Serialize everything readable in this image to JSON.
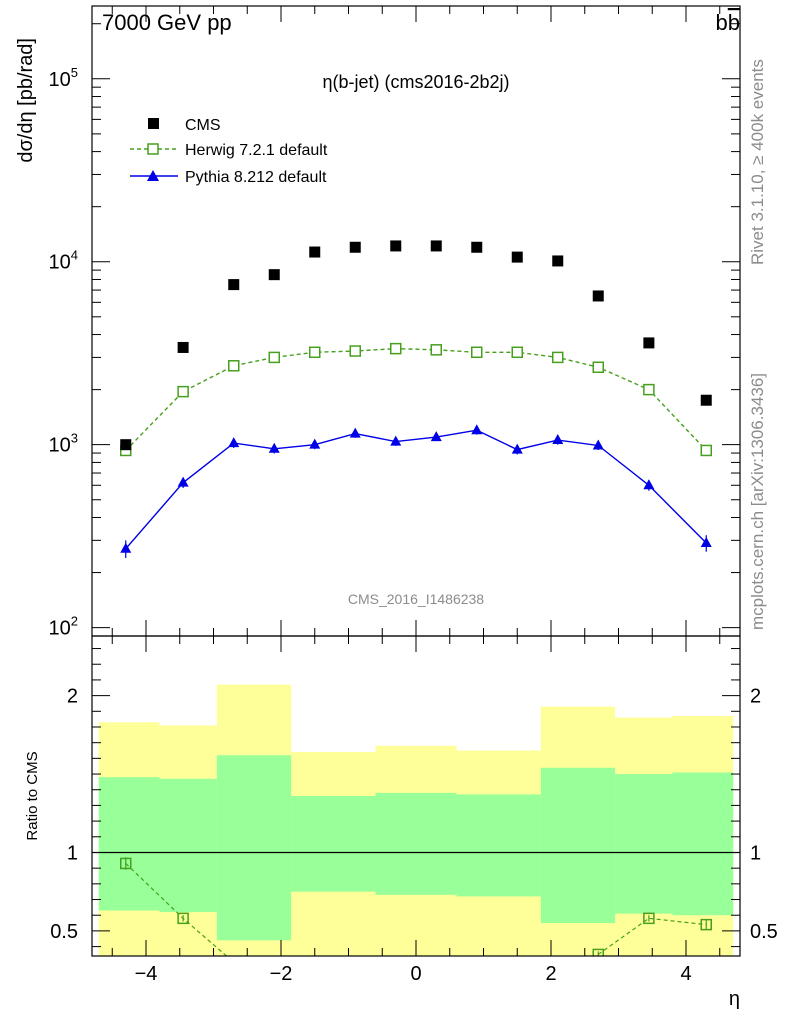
{
  "header": {
    "left": "7000 GeV pp",
    "right": "b",
    "right_bar": "b"
  },
  "side_labels": {
    "rivet": "Rivet 3.1.10, ≥ 400k events",
    "mcplots": "mcplots.cern.ch [arXiv:1306.3436]"
  },
  "watermark": "CMS_2016_I1486238",
  "chart_data": [
    {
      "type": "scatter",
      "panel": "main",
      "title": "η(b-jet) (cms2016-2b2j)",
      "ylabel": "dσ/dη [pb/rad]",
      "xlabel": "",
      "yscale": "log",
      "ylim": [
        90,
        250000
      ],
      "xlim": [
        -4.8,
        4.8
      ],
      "y_ticks": [
        100,
        1000,
        10000,
        100000
      ],
      "y_tick_labels": [
        [
          "10",
          "2"
        ],
        [
          "10",
          "3"
        ],
        [
          "10",
          "4"
        ],
        [
          "10",
          "5"
        ]
      ],
      "legend_position": "top-left",
      "x": [
        -4.3,
        -3.45,
        -2.7,
        -2.1,
        -1.5,
        -0.9,
        -0.3,
        0.3,
        0.9,
        1.5,
        2.1,
        2.7,
        3.45,
        4.3
      ],
      "series": [
        {
          "name": "CMS",
          "color": "#000000",
          "marker": "square",
          "values": [
            1000,
            3400,
            7500,
            8500,
            11300,
            12000,
            12200,
            12200,
            12000,
            10600,
            10100,
            6500,
            3600,
            1750
          ]
        },
        {
          "name": "Herwig 7.2.1 default",
          "color": "#46a01e",
          "marker": "open-square",
          "line": "dashed",
          "values": [
            930,
            1950,
            2700,
            3000,
            3200,
            3250,
            3350,
            3300,
            3200,
            3200,
            3000,
            2650,
            2000,
            930
          ]
        },
        {
          "name": "Pythia 8.212 default",
          "color": "#0000e6",
          "marker": "triangle",
          "line": "solid",
          "values": [
            270,
            620,
            1020,
            950,
            1000,
            1150,
            1040,
            1100,
            1200,
            940,
            1060,
            990,
            600,
            290
          ],
          "errors": [
            30,
            40,
            60,
            55,
            55,
            60,
            55,
            55,
            65,
            55,
            60,
            55,
            40,
            30
          ]
        }
      ]
    },
    {
      "type": "scatter",
      "panel": "ratio",
      "ylabel": "Ratio to CMS",
      "xlabel": "η",
      "ylim": [
        0.34,
        2.38
      ],
      "xlim": [
        -4.8,
        4.8
      ],
      "x_ticks": [
        -4,
        -2,
        0,
        2,
        4
      ],
      "x_tick_labels": [
        "−4",
        "−2",
        "0",
        "2",
        "4"
      ],
      "y_ticks": [
        0.5,
        1,
        2
      ],
      "y_tick_labels": [
        "0.5",
        "1",
        "2"
      ],
      "bands": {
        "edges": [
          -4.7,
          -3.8,
          -2.95,
          -1.85,
          -0.6,
          0.6,
          1.85,
          2.95,
          3.8,
          4.7
        ],
        "green": [
          [
            0.63,
            1.48
          ],
          [
            0.62,
            1.47
          ],
          [
            0.44,
            1.62
          ],
          [
            0.75,
            1.36
          ],
          [
            0.73,
            1.38
          ],
          [
            0.72,
            1.37
          ],
          [
            0.55,
            1.54
          ],
          [
            0.61,
            1.5
          ],
          [
            0.6,
            1.51
          ]
        ],
        "yellow": [
          [
            0.34,
            1.83
          ],
          [
            0.34,
            1.81
          ],
          [
            0.34,
            2.07
          ],
          [
            0.34,
            1.64
          ],
          [
            0.34,
            1.68
          ],
          [
            0.34,
            1.65
          ],
          [
            0.34,
            1.93
          ],
          [
            0.34,
            1.86
          ],
          [
            0.34,
            1.87
          ]
        ]
      },
      "series": [
        {
          "name": "Herwig 7.2.1 default",
          "color": "#46a01e",
          "x": [
            -4.3,
            -3.45,
            -2.7,
            2.7,
            3.45,
            4.3
          ],
          "values": [
            0.93,
            0.58,
            0.3,
            0.35,
            0.58,
            0.54
          ],
          "errors": [
            0.04,
            0.02,
            0.02,
            0.02,
            0.02,
            0.03
          ]
        }
      ]
    }
  ]
}
